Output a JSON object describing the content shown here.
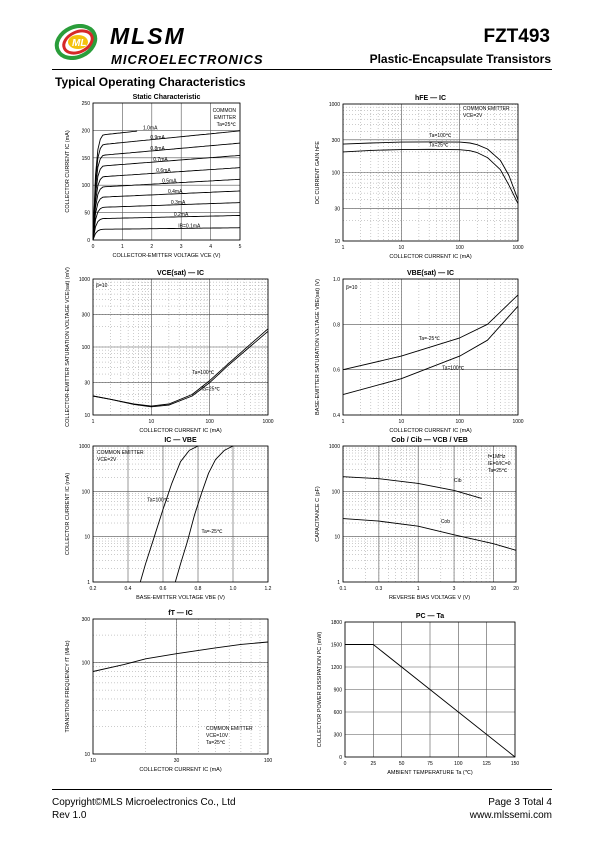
{
  "header": {
    "brand": "MLSM",
    "sub": "MICROELECTRONICS",
    "logo_letters": "ML",
    "part": "FZT493",
    "description": "Plastic-Encapsulate Transistors"
  },
  "section_title": "Typical Operating Characteristics",
  "footer": {
    "copyright": "Copyright©MLS Microelectronics Co., Ltd",
    "rev": "Rev 1.0",
    "page": "Page 3 Total 4",
    "url": "www.mlssemi.com"
  },
  "chart_data": [
    {
      "id": "static",
      "type": "line",
      "title": "Static Characteristic",
      "xlabel": "COLLECTOR-EMITTER VOLTAGE  VCE  (V)",
      "ylabel": "COLLECTOR CURRENT  IC  (mA)",
      "xlim": [
        0,
        5
      ],
      "ylim": [
        0,
        250
      ],
      "xticks": [
        "0",
        "1",
        "2",
        "3",
        "4",
        "5"
      ],
      "yticks": [
        "0",
        "50",
        "100",
        "150",
        "200",
        "250"
      ],
      "annotation": [
        "COMMON",
        "EMITTER",
        "Ta=25℃"
      ],
      "series": [
        {
          "name": "1.0mA",
          "sat": 196
        },
        {
          "name": "0.9mA",
          "sat": 178
        },
        {
          "name": "0.8mA",
          "sat": 158
        },
        {
          "name": "0.7mA",
          "sat": 138
        },
        {
          "name": "0.6mA",
          "sat": 118
        },
        {
          "name": "0.5mA",
          "sat": 99
        },
        {
          "name": "0.4mA",
          "sat": 80
        },
        {
          "name": "0.3mA",
          "sat": 61
        },
        {
          "name": "0.2mA",
          "sat": 40
        },
        {
          "name": "IB=0.1mA",
          "sat": 20
        }
      ]
    },
    {
      "id": "hfe",
      "type": "line",
      "title": "hFE — IC",
      "xlabel": "COLLECTOR CURRENT  IC  (mA)",
      "ylabel": "DC CURRENT GAIN  hFE",
      "xscale": "log",
      "yscale": "log",
      "xlim": [
        1,
        1000
      ],
      "ylim": [
        10,
        1000
      ],
      "xticks": [
        "1",
        "10",
        "100",
        "1000"
      ],
      "yticks": [
        "10",
        "30",
        "100",
        "300",
        "1000"
      ],
      "annotation": [
        "COMMON EMITTER",
        "VCE=2V"
      ],
      "series": [
        {
          "name": "Ta=100℃",
          "x": [
            1,
            3,
            10,
            30,
            100,
            150,
            200,
            300,
            500,
            700,
            1000
          ],
          "y": [
            260,
            270,
            278,
            280,
            278,
            270,
            255,
            220,
            150,
            90,
            40
          ]
        },
        {
          "name": "Ta=25℃",
          "x": [
            1,
            3,
            10,
            30,
            100,
            150,
            200,
            300,
            500,
            700,
            1000
          ],
          "y": [
            200,
            210,
            216,
            218,
            215,
            208,
            195,
            165,
            110,
            65,
            35
          ]
        }
      ]
    },
    {
      "id": "vcesat",
      "type": "line",
      "title": "VCE(sat) — IC",
      "xlabel": "COLLECTOR CURRENT  IC  (mA)",
      "ylabel": "COLLECTOR-EMITTER SATURATION VOLTAGE  VCE(sat)  (mV)",
      "xscale": "log",
      "yscale": "log",
      "xlim": [
        1,
        1000
      ],
      "ylim": [
        10,
        1000
      ],
      "xticks": [
        "1",
        "10",
        "100",
        "1000"
      ],
      "yticks": [
        "10",
        "30",
        "100",
        "300",
        "1000"
      ],
      "annotation": [
        "β=10"
      ],
      "series": [
        {
          "name": "Ta=100℃",
          "x": [
            1,
            2,
            5,
            10,
            20,
            50,
            100,
            200,
            500,
            1000
          ],
          "y": [
            19,
            17,
            14.5,
            13.5,
            14.5,
            20,
            32,
            55,
            110,
            185
          ]
        },
        {
          "name": "Ta=25℃",
          "x": [
            1,
            2,
            5,
            10,
            20,
            50,
            100,
            200,
            500,
            1000
          ],
          "y": [
            19,
            17,
            14.3,
            13.2,
            14,
            19,
            30,
            52,
            102,
            170
          ]
        }
      ]
    },
    {
      "id": "vbesat",
      "type": "line",
      "title": "VBE(sat) — IC",
      "xlabel": "COLLECTOR CURRENT  IC  (mA)",
      "ylabel": "BASE-EMITTER SATURATION VOLTAGE  VBE(sat)  (V)",
      "xscale": "log",
      "xlim": [
        1,
        1000
      ],
      "ylim": [
        0.4,
        1.0
      ],
      "xticks": [
        "1",
        "10",
        "100",
        "1000"
      ],
      "yticks": [
        "0.4",
        "0.6",
        "0.8",
        "1.0"
      ],
      "annotation": [
        "β=10"
      ],
      "series": [
        {
          "name": "Ta=-25℃",
          "x": [
            1,
            10,
            100,
            300,
            1000
          ],
          "y": [
            0.6,
            0.66,
            0.74,
            0.8,
            0.93
          ]
        },
        {
          "name": "Ta=100℃",
          "x": [
            1,
            10,
            100,
            300,
            1000
          ],
          "y": [
            0.49,
            0.56,
            0.66,
            0.73,
            0.88
          ]
        }
      ]
    },
    {
      "id": "icvbe",
      "type": "line",
      "title": "IC — VBE",
      "xlabel": "BASE-EMITTER VOLTAGE  VBE  (V)",
      "ylabel": "COLLECTOR CURRENT  IC  (mA)",
      "yscale": "log",
      "xlim": [
        0.2,
        1.2
      ],
      "ylim": [
        1,
        1000
      ],
      "xticks": [
        "0.2",
        "0.4",
        "0.6",
        "0.8",
        "1.0",
        "1.2"
      ],
      "yticks": [
        "1",
        "10",
        "100",
        "1000"
      ],
      "annotation": [
        "COMMON EMITTER",
        "VCE=2V"
      ],
      "series": [
        {
          "name": "Ta=100℃",
          "x": [
            0.47,
            0.5,
            0.55,
            0.6,
            0.65,
            0.7,
            0.75,
            0.8
          ],
          "y": [
            1,
            2.5,
            10,
            40,
            150,
            450,
            800,
            1000
          ]
        },
        {
          "name": "Ta=-25℃",
          "x": [
            0.67,
            0.7,
            0.74,
            0.78,
            0.82,
            0.86,
            0.9,
            0.95,
            1.0
          ],
          "y": [
            1,
            2.5,
            8,
            30,
            90,
            250,
            500,
            800,
            1000
          ]
        }
      ]
    },
    {
      "id": "cap",
      "type": "line",
      "title": "Cob / Cib — VCB / VEB",
      "xlabel": "REVERSE BIAS VOLTAGE  V  (V)",
      "ylabel": "CAPACITANCE  C  (pF)",
      "xscale": "log",
      "yscale": "log",
      "xlim": [
        0.1,
        20
      ],
      "ylim": [
        1,
        1000
      ],
      "xticks": [
        "0.1",
        "0.3",
        "1",
        "3",
        "10",
        "20"
      ],
      "yticks": [
        "1",
        "10",
        "100",
        "1000"
      ],
      "annotation": [
        "f=1MHz",
        "IE=0/IC=0",
        "Ta=25℃"
      ],
      "series": [
        {
          "name": "Cib",
          "x": [
            0.1,
            0.3,
            1,
            3,
            7
          ],
          "y": [
            210,
            190,
            150,
            105,
            70
          ]
        },
        {
          "name": "Cob",
          "x": [
            0.1,
            0.3,
            1,
            3,
            10,
            20
          ],
          "y": [
            25,
            22,
            17,
            11,
            7,
            5
          ]
        }
      ]
    },
    {
      "id": "ft",
      "type": "line",
      "title": "fT — IC",
      "xlabel": "COLLECTOR CURRENT  IC  (mA)",
      "ylabel": "TRANSITION FREQUENCY  fT  (MHz)",
      "xscale": "log",
      "yscale": "log",
      "xlim": [
        10,
        100
      ],
      "ylim": [
        10,
        300
      ],
      "xticks": [
        "10",
        "30",
        "100"
      ],
      "yticks": [
        "10",
        "100",
        "300"
      ],
      "annotation": [
        "COMMON EMITTER",
        "VCE=10V",
        "Ta=25℃"
      ],
      "series": [
        {
          "name": "fT",
          "x": [
            10,
            15,
            20,
            30,
            50,
            70,
            100
          ],
          "y": [
            80,
            95,
            110,
            125,
            145,
            158,
            168
          ]
        }
      ]
    },
    {
      "id": "pc",
      "type": "line",
      "title": "PC — Ta",
      "xlabel": "AMBIENT TEMPERATURE  Ta  (℃)",
      "ylabel": "COLLECTOR POWER DISSIPATION  PC  (mW)",
      "xlim": [
        0,
        150
      ],
      "ylim": [
        0,
        1800
      ],
      "xticks": [
        "0",
        "25",
        "50",
        "75",
        "100",
        "125",
        "150"
      ],
      "yticks": [
        "0",
        "300",
        "600",
        "900",
        "1200",
        "1500",
        "1800"
      ],
      "series": [
        {
          "name": "PC",
          "x": [
            0,
            25,
            150
          ],
          "y": [
            1500,
            1500,
            0
          ]
        }
      ]
    }
  ]
}
